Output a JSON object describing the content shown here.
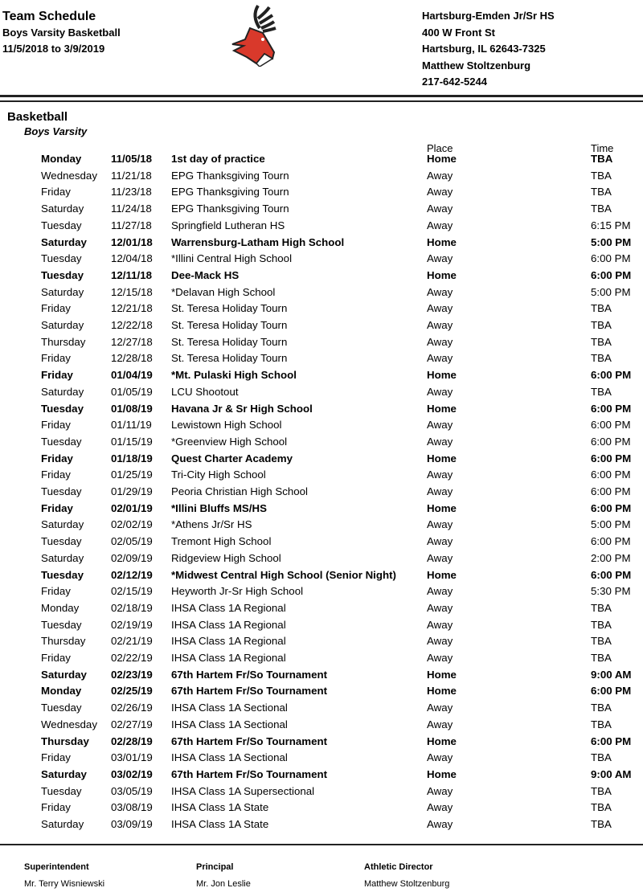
{
  "header": {
    "title": "Team Schedule",
    "subtitle": "Boys Varsity Basketball",
    "date_range": "11/5/2018 to 3/9/2019",
    "school": "Hartsburg-Emden Jr/Sr HS",
    "address": "400 W Front St",
    "city": "Hartsburg, IL 62643-7325",
    "contact": "Matthew Stoltzenburg",
    "phone": "217-642-5244",
    "logo": "red deer mascot"
  },
  "section": {
    "sport": "Basketball",
    "level": "Boys Varsity",
    "place_header": "Place",
    "time_header": "Time"
  },
  "rows": [
    [
      "Monday",
      "11/05/18",
      "1st day of practice",
      "Home",
      "TBA"
    ],
    [
      "Wednesday",
      "11/21/18",
      "EPG Thanksgiving Tourn",
      "Away",
      "TBA"
    ],
    [
      "Friday",
      "11/23/18",
      "EPG Thanksgiving Tourn",
      "Away",
      "TBA"
    ],
    [
      "Saturday",
      "11/24/18",
      "EPG Thanksgiving Tourn",
      "Away",
      "TBA"
    ],
    [
      "Tuesday",
      "11/27/18",
      "Springfield Lutheran HS",
      "Away",
      "6:15 PM"
    ],
    [
      "Saturday",
      "12/01/18",
      "Warrensburg-Latham High School",
      "Home",
      "5:00 PM"
    ],
    [
      "Tuesday",
      "12/04/18",
      "*Illini Central High School",
      "Away",
      "6:00 PM"
    ],
    [
      "Tuesday",
      "12/11/18",
      "Dee-Mack HS",
      "Home",
      "6:00 PM"
    ],
    [
      "Saturday",
      "12/15/18",
      "*Delavan High School",
      "Away",
      "5:00 PM"
    ],
    [
      "Friday",
      "12/21/18",
      "St. Teresa Holiday Tourn",
      "Away",
      "TBA"
    ],
    [
      "Saturday",
      "12/22/18",
      "St. Teresa Holiday Tourn",
      "Away",
      "TBA"
    ],
    [
      "Thursday",
      "12/27/18",
      "St. Teresa Holiday Tourn",
      "Away",
      "TBA"
    ],
    [
      "Friday",
      "12/28/18",
      "St. Teresa Holiday Tourn",
      "Away",
      "TBA"
    ],
    [
      "Friday",
      "01/04/19",
      "*Mt. Pulaski High School",
      "Home",
      "6:00 PM"
    ],
    [
      "Saturday",
      "01/05/19",
      "LCU Shootout",
      "Away",
      "TBA"
    ],
    [
      "Tuesday",
      "01/08/19",
      "Havana Jr & Sr High School",
      "Home",
      "6:00 PM"
    ],
    [
      "Friday",
      "01/11/19",
      "Lewistown High School",
      "Away",
      "6:00 PM"
    ],
    [
      "Tuesday",
      "01/15/19",
      "*Greenview High School",
      "Away",
      "6:00 PM"
    ],
    [
      "Friday",
      "01/18/19",
      "Quest Charter Academy",
      "Home",
      "6:00 PM"
    ],
    [
      "Friday",
      "01/25/19",
      "Tri-City High School",
      "Away",
      "6:00 PM"
    ],
    [
      "Tuesday",
      "01/29/19",
      "Peoria Christian High School",
      "Away",
      "6:00 PM"
    ],
    [
      "Friday",
      "02/01/19",
      "*Illini Bluffs MS/HS",
      "Home",
      "6:00 PM"
    ],
    [
      "Saturday",
      "02/02/19",
      "*Athens Jr/Sr HS",
      "Away",
      "5:00 PM"
    ],
    [
      "Tuesday",
      "02/05/19",
      "Tremont High School",
      "Away",
      "6:00 PM"
    ],
    [
      "Saturday",
      "02/09/19",
      "Ridgeview High School",
      "Away",
      "2:00 PM"
    ],
    [
      "Tuesday",
      "02/12/19",
      "*Midwest Central High School (Senior Night)",
      "Home",
      "6:00 PM"
    ],
    [
      "Friday",
      "02/15/19",
      "Heyworth Jr-Sr High School",
      "Away",
      "5:30 PM"
    ],
    [
      "Monday",
      "02/18/19",
      "IHSA Class 1A Regional",
      "Away",
      "TBA"
    ],
    [
      "Tuesday",
      "02/19/19",
      "IHSA Class 1A Regional",
      "Away",
      "TBA"
    ],
    [
      "Thursday",
      "02/21/19",
      "IHSA Class 1A Regional",
      "Away",
      "TBA"
    ],
    [
      "Friday",
      "02/22/19",
      "IHSA Class 1A Regional",
      "Away",
      "TBA"
    ],
    [
      "Saturday",
      "02/23/19",
      "67th Hartem Fr/So Tournament",
      "Home",
      "9:00 AM"
    ],
    [
      "Monday",
      "02/25/19",
      "67th Hartem Fr/So Tournament",
      "Home",
      "6:00 PM"
    ],
    [
      "Tuesday",
      "02/26/19",
      "IHSA Class 1A Sectional",
      "Away",
      "TBA"
    ],
    [
      "Wednesday",
      "02/27/19",
      "IHSA Class 1A Sectional",
      "Away",
      "TBA"
    ],
    [
      "Thursday",
      "02/28/19",
      "67th Hartem Fr/So Tournament",
      "Home",
      "6:00 PM"
    ],
    [
      "Friday",
      "03/01/19",
      "IHSA Class 1A Sectional",
      "Away",
      "TBA"
    ],
    [
      "Saturday",
      "03/02/19",
      "67th Hartem Fr/So Tournament",
      "Home",
      "9:00 AM"
    ],
    [
      "Tuesday",
      "03/05/19",
      "IHSA Class 1A Supersectional",
      "Away",
      "TBA"
    ],
    [
      "Friday",
      "03/08/19",
      "IHSA Class 1A State",
      "Away",
      "TBA"
    ],
    [
      "Saturday",
      "03/09/19",
      "IHSA Class 1A State",
      "Away",
      "TBA"
    ]
  ],
  "footer": [
    {
      "role": "Superintendent",
      "name": "Mr. Terry Wisniewski"
    },
    {
      "role": "Principal",
      "name": "Mr. Jon Leslie"
    },
    {
      "role": "Athletic Director",
      "name": "Matthew Stoltzenburg"
    }
  ]
}
